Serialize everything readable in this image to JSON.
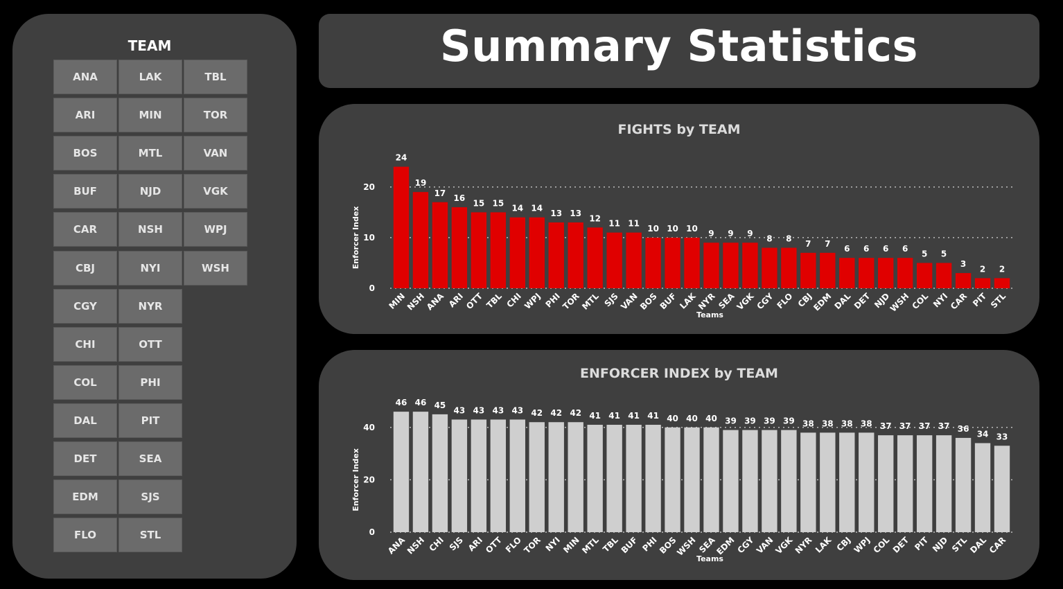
{
  "page": {
    "title": "Summary Statistics"
  },
  "slicer": {
    "title": "TEAM",
    "columns": [
      [
        "ANA",
        "ARI",
        "BOS",
        "BUF",
        "CAR",
        "CBJ",
        "CGY",
        "CHI",
        "COL",
        "DAL",
        "DET",
        "EDM",
        "FLO"
      ],
      [
        "LAK",
        "MIN",
        "MTL",
        "NJD",
        "NSH",
        "NYI",
        "NYR",
        "OTT",
        "PHI",
        "PIT",
        "SEA",
        "SJS",
        "STL"
      ],
      [
        "TBL",
        "TOR",
        "VAN",
        "VGK",
        "WPJ",
        "WSH"
      ]
    ]
  },
  "colors": {
    "fights_bar": "#e00000",
    "enforcer_bar": "#cfcfcf",
    "panel": "#3f3f3f",
    "tile": "#6b6b6b"
  },
  "chart_data": [
    {
      "type": "bar",
      "title": "FIGHTS by TEAM",
      "xlabel": "Teams",
      "ylabel": "Enforcer Index",
      "ylim": [
        0,
        26
      ],
      "yticks": [
        0,
        10,
        20
      ],
      "grid": true,
      "categories": [
        "MIN",
        "NSH",
        "ANA",
        "ARI",
        "OTT",
        "TBL",
        "CHI",
        "WPJ",
        "PHI",
        "TOR",
        "MTL",
        "SJS",
        "VAN",
        "BOS",
        "BUF",
        "LAK",
        "NYR",
        "SEA",
        "VGK",
        "CGY",
        "FLO",
        "CBJ",
        "EDM",
        "DAL",
        "DET",
        "NJD",
        "WSH",
        "COL",
        "NYI",
        "CAR",
        "PIT",
        "STL"
      ],
      "values": [
        24,
        19,
        17,
        16,
        15,
        15,
        14,
        14,
        13,
        13,
        12,
        11,
        11,
        10,
        10,
        10,
        9,
        9,
        9,
        8,
        8,
        7,
        7,
        6,
        6,
        6,
        6,
        5,
        5,
        3,
        2,
        2
      ]
    },
    {
      "type": "bar",
      "title": "ENFORCER INDEX by TEAM",
      "xlabel": "Teams",
      "ylabel": "Enforcer Index",
      "ylim": [
        0,
        50
      ],
      "yticks": [
        0,
        20,
        40
      ],
      "grid": true,
      "categories": [
        "ANA",
        "NSH",
        "CHI",
        "SJS",
        "ARI",
        "OTT",
        "FLO",
        "TOR",
        "NYI",
        "MIN",
        "MTL",
        "TBL",
        "BUF",
        "PHI",
        "BOS",
        "WSH",
        "SEA",
        "EDM",
        "CGY",
        "VAN",
        "VGK",
        "NYR",
        "LAK",
        "CBJ",
        "WPJ",
        "COL",
        "DET",
        "PIT",
        "NJD",
        "STL",
        "DAL",
        "CAR"
      ],
      "values": [
        46,
        46,
        45,
        43,
        43,
        43,
        43,
        42,
        42,
        42,
        41,
        41,
        41,
        41,
        40,
        40,
        40,
        39,
        39,
        39,
        39,
        38,
        38,
        38,
        38,
        37,
        37,
        37,
        37,
        36,
        34,
        33
      ]
    }
  ]
}
